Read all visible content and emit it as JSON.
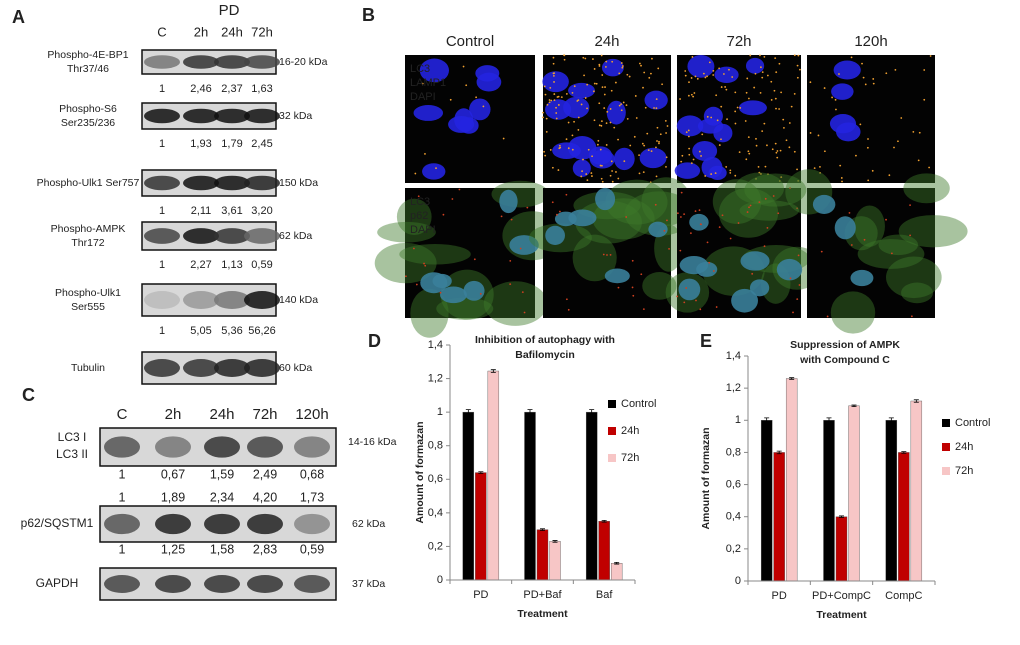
{
  "panel_a": {
    "label": "A",
    "group_label": "PD",
    "lanes": [
      "C",
      "2h",
      "24h",
      "72h"
    ],
    "rows": [
      {
        "name_lines": [
          "Phospho-4E-BP1",
          "Thr37/46"
        ],
        "kda": "16-20 kDa",
        "values": [
          "1",
          "2,46",
          "2,37",
          "1,63"
        ]
      },
      {
        "name_lines": [
          "Phospho-S6",
          "Ser235/236"
        ],
        "kda": "32 kDa",
        "values": [
          "1",
          "1,93",
          "1,79",
          "2,45"
        ]
      },
      {
        "name_lines": [
          "Phospho-Ulk1 Ser757"
        ],
        "kda": "150 kDa",
        "values": [
          "1",
          "2,11",
          "3,61",
          "3,20"
        ]
      },
      {
        "name_lines": [
          "Phospho-AMPK",
          "Thr172"
        ],
        "kda": "62 kDa",
        "values": [
          "1",
          "2,27",
          "1,13",
          "0,59"
        ]
      },
      {
        "name_lines": [
          "Phospho-Ulk1",
          "Ser555"
        ],
        "kda": "140 kDa",
        "values": [
          "1",
          "5,05",
          "5,36",
          "56,26"
        ]
      },
      {
        "name_lines": [
          "Tubulin"
        ],
        "kda": "60 kDa",
        "values": []
      }
    ]
  },
  "panel_b": {
    "label": "B",
    "columns": [
      "Control",
      "24h",
      "72h",
      "120h"
    ],
    "rows": [
      {
        "stains": [
          "LC3",
          "LAMP1",
          "DAPI"
        ]
      },
      {
        "stains": [
          "LC3",
          "p62",
          "DAPI"
        ]
      }
    ]
  },
  "panel_c": {
    "label": "C",
    "lanes": [
      "C",
      "2h",
      "24h",
      "72h",
      "120h"
    ],
    "lc3": {
      "labels": [
        "LC3 I",
        "LC3 II"
      ],
      "kda": "14-16 kDa"
    },
    "values": [
      [
        "1",
        "0,67",
        "1,59",
        "2,49",
        "0,68"
      ],
      [
        "1",
        "1,89",
        "2,34",
        "4,20",
        "1,73"
      ],
      [
        "1",
        "1,25",
        "1,58",
        "2,83",
        "0,59"
      ]
    ],
    "p62": {
      "label": "p62/SQSTM1",
      "kda": "62 kDa"
    },
    "gapdh": {
      "label": "GAPDH",
      "kda": "37 kDa"
    }
  },
  "chart_data": [
    {
      "type": "bar",
      "panel_label": "D",
      "title": [
        "Inhibition of autophagy with",
        "Bafilomycin"
      ],
      "y_label": "Amount of formazan",
      "x_label": "Treatment",
      "categories": [
        "PD",
        "PD+Baf",
        "Baf"
      ],
      "series": [
        {
          "name": "Control",
          "color": "#000000",
          "values": [
            1,
            1,
            1
          ],
          "errors": [
            0.015,
            0.015,
            0.015
          ]
        },
        {
          "name": "24h",
          "color": "#c00000",
          "values": [
            0.64,
            0.3,
            0.35
          ],
          "errors": [
            0.005,
            0.005,
            0.005
          ]
        },
        {
          "name": "72h",
          "color": "#f7c6c6",
          "values": [
            1.245,
            0.23,
            0.1
          ],
          "errors": [
            0.008,
            0.005,
            0.005
          ]
        }
      ],
      "ylim": [
        0,
        1.4
      ],
      "yticks": [
        0,
        {
          "value": 0.2,
          "label": "0,2"
        },
        {
          "value": 0.4,
          "label": "0,4"
        },
        {
          "value": 0.6,
          "label": "0,6"
        },
        {
          "value": 0.8,
          "label": "0,8"
        },
        1,
        {
          "value": 1.2,
          "label": "1,2"
        },
        {
          "value": 1.4,
          "label": "1,4"
        }
      ],
      "grid": false,
      "legend": "right"
    },
    {
      "type": "bar",
      "panel_label": "E",
      "title": [
        "Suppression of AMPK",
        "with Compound C"
      ],
      "y_label": "Amount of formazan",
      "x_label": "Treatment",
      "categories": [
        "PD",
        "PD+CompC",
        "CompC"
      ],
      "series": [
        {
          "name": "Control",
          "color": "#000000",
          "values": [
            1,
            1,
            1
          ],
          "errors": [
            0.015,
            0.015,
            0.015
          ]
        },
        {
          "name": "24h",
          "color": "#c00000",
          "values": [
            0.8,
            0.4,
            0.8
          ],
          "errors": [
            0.008,
            0.005,
            0.005
          ]
        },
        {
          "name": "72h",
          "color": "#f7c6c6",
          "values": [
            1.26,
            1.09,
            1.12
          ],
          "errors": [
            0.005,
            0.005,
            0.008
          ]
        }
      ],
      "ylim": [
        0,
        1.4
      ],
      "yticks": [
        0,
        {
          "value": 0.2,
          "label": "0,2"
        },
        {
          "value": 0.4,
          "label": "0,4"
        },
        {
          "value": 0.6,
          "label": "0,6"
        },
        {
          "value": 0.8,
          "label": "0,8"
        },
        1,
        {
          "value": 1.2,
          "label": "1,2"
        },
        {
          "value": 1.4,
          "label": "1,4"
        }
      ],
      "grid": false,
      "legend": "right"
    }
  ]
}
